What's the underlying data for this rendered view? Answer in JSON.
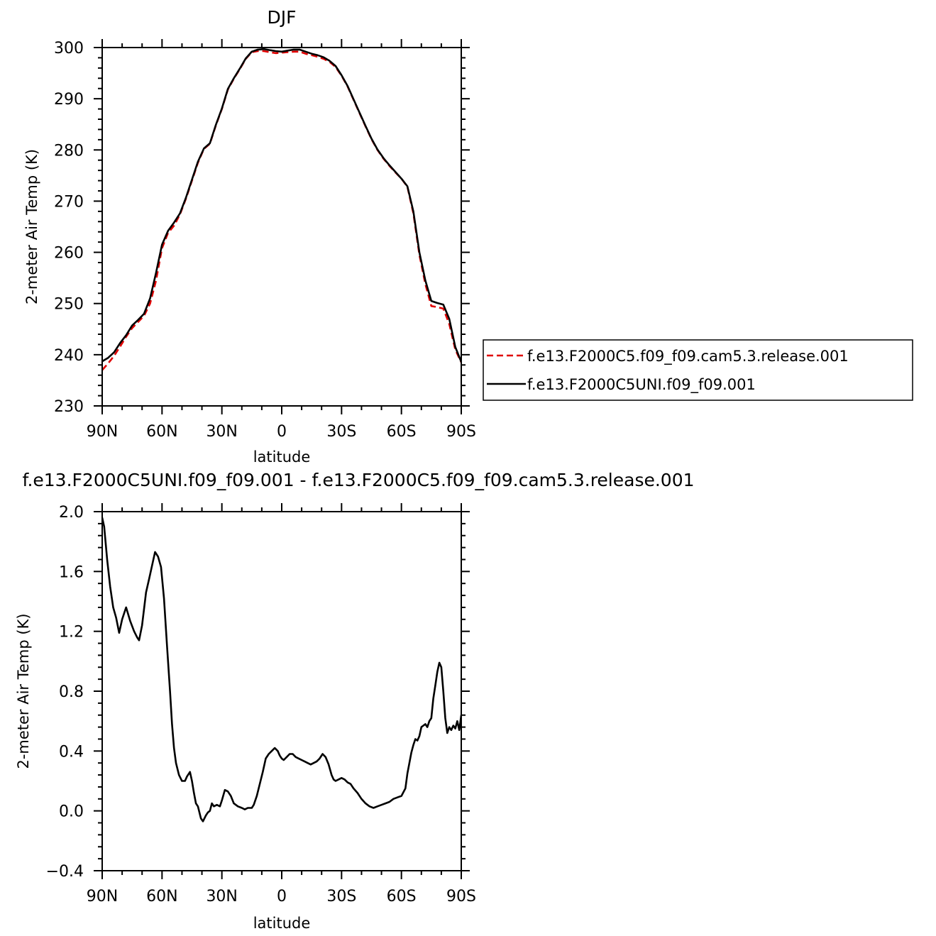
{
  "chart_data": [
    {
      "type": "line",
      "title": "DJF",
      "xlabel": "latitude",
      "ylabel": "2-meter Air Temp (K)",
      "xlim": [
        -90,
        90
      ],
      "ylim": [
        230,
        300
      ],
      "x_ticks": [
        {
          "value": -90,
          "label": "90N"
        },
        {
          "value": -60,
          "label": "60N"
        },
        {
          "value": -30,
          "label": "30N"
        },
        {
          "value": 0,
          "label": "0"
        },
        {
          "value": 30,
          "label": "30S"
        },
        {
          "value": 60,
          "label": "60S"
        },
        {
          "value": 90,
          "label": "90S"
        }
      ],
      "y_ticks": [
        {
          "value": 230,
          "label": "230"
        },
        {
          "value": 240,
          "label": "240"
        },
        {
          "value": 250,
          "label": "250"
        },
        {
          "value": 260,
          "label": "260"
        },
        {
          "value": 270,
          "label": "270"
        },
        {
          "value": 280,
          "label": "280"
        },
        {
          "value": 290,
          "label": "290"
        },
        {
          "value": 300,
          "label": "300"
        }
      ],
      "legend_position": "right",
      "series": [
        {
          "name": "f.e13.F2000C5.f09_f09.cam5.3.release.001",
          "color": "#e00000",
          "dash": "dashed",
          "x": [
            -90,
            -87,
            -84,
            -81,
            -78,
            -75,
            -72,
            -69,
            -66,
            -63,
            -60,
            -57,
            -54,
            -51,
            -48,
            -45,
            -42,
            -39,
            -36,
            -33,
            -30,
            -27,
            -24,
            -21,
            -18,
            -15,
            -12,
            -9,
            -6,
            -3,
            0,
            3,
            6,
            9,
            12,
            15,
            18,
            21,
            24,
            27,
            30,
            33,
            36,
            39,
            42,
            45,
            48,
            51,
            54,
            57,
            60,
            63,
            66,
            69,
            72,
            75,
            78,
            81,
            84,
            87,
            90
          ],
          "values": [
            237.0,
            238.3,
            239.8,
            241.6,
            243.5,
            245.2,
            246.4,
            247.6,
            250.0,
            254.5,
            260.8,
            263.8,
            265.2,
            267.4,
            270.5,
            274.0,
            277.5,
            280.2,
            281.2,
            284.8,
            288.0,
            291.8,
            293.9,
            295.8,
            297.8,
            299.1,
            299.3,
            299.3,
            299.1,
            298.9,
            299.0,
            299.1,
            299.2,
            299.2,
            298.8,
            298.5,
            298.2,
            297.8,
            297.2,
            296.2,
            294.5,
            292.4,
            289.8,
            287.2,
            284.6,
            282.1,
            280.0,
            278.3,
            276.9,
            275.6,
            274.4,
            272.8,
            267.6,
            259.5,
            253.8,
            249.5,
            249.3,
            249.0,
            246.0,
            241.0,
            238.5
          ]
        },
        {
          "name": "f.e13.F2000C5UNI.f09_f09.001",
          "color": "#000000",
          "dash": "solid",
          "x": [
            -90,
            -87,
            -84,
            -81,
            -78,
            -75,
            -72,
            -69,
            -66,
            -63,
            -60,
            -57,
            -54,
            -51,
            -48,
            -45,
            -42,
            -39,
            -36,
            -33,
            -30,
            -27,
            -24,
            -21,
            -18,
            -15,
            -12,
            -9,
            -6,
            -3,
            0,
            3,
            6,
            9,
            12,
            15,
            18,
            21,
            24,
            27,
            30,
            33,
            36,
            39,
            42,
            45,
            48,
            51,
            54,
            57,
            60,
            63,
            66,
            69,
            72,
            75,
            78,
            81,
            84,
            87,
            90
          ],
          "values": [
            238.7,
            239.4,
            240.5,
            242.3,
            243.8,
            245.7,
            246.8,
            248.0,
            251.0,
            256.0,
            261.5,
            264.2,
            265.8,
            267.6,
            270.7,
            274.2,
            277.7,
            280.3,
            281.3,
            284.9,
            288.1,
            291.9,
            294.0,
            295.9,
            297.9,
            299.2,
            299.6,
            299.7,
            299.5,
            299.3,
            299.2,
            299.4,
            299.6,
            299.6,
            299.2,
            298.8,
            298.5,
            298.1,
            297.4,
            296.4,
            294.6,
            292.5,
            289.9,
            287.3,
            284.7,
            282.2,
            280.1,
            278.4,
            277.0,
            275.7,
            274.4,
            272.9,
            268.0,
            260.0,
            254.5,
            250.5,
            250.1,
            249.8,
            247.0,
            241.5,
            238.6
          ]
        }
      ]
    },
    {
      "type": "line",
      "title": "f.e13.F2000C5UNI.f09_f09.001  -  f.e13.F2000C5.f09_f09.cam5.3.release.001",
      "xlabel": "latitude",
      "ylabel": "2-meter Air Temp (K)",
      "xlim": [
        -90,
        90
      ],
      "ylim": [
        -0.4,
        2.0
      ],
      "x_ticks": [
        {
          "value": -90,
          "label": "90N"
        },
        {
          "value": -60,
          "label": "60N"
        },
        {
          "value": -30,
          "label": "30N"
        },
        {
          "value": 0,
          "label": "0"
        },
        {
          "value": 30,
          "label": "30S"
        },
        {
          "value": 60,
          "label": "60S"
        },
        {
          "value": 90,
          "label": "90S"
        }
      ],
      "y_ticks": [
        {
          "value": -0.4,
          "label": "−0.4"
        },
        {
          "value": 0.0,
          "label": "0.0"
        },
        {
          "value": 0.4,
          "label": "0.4"
        },
        {
          "value": 0.8,
          "label": "0.8"
        },
        {
          "value": 1.2,
          "label": "1.2"
        },
        {
          "value": 1.6,
          "label": "1.6"
        },
        {
          "value": 2.0,
          "label": "2.0"
        }
      ],
      "series": [
        {
          "color": "#000000",
          "dash": "solid",
          "x": [
            -90,
            -89,
            -87.5,
            -86,
            -84.5,
            -83,
            -81.5,
            -80,
            -78,
            -76,
            -74,
            -72.5,
            -71.5,
            -70,
            -68,
            -66.5,
            -65,
            -63.5,
            -62,
            -60.5,
            -59,
            -57.5,
            -56,
            -55,
            -54,
            -53,
            -51.5,
            -50,
            -48.5,
            -47.5,
            -46,
            -45,
            -44,
            -43,
            -42,
            -40.5,
            -39.5,
            -38,
            -37,
            -36,
            -35,
            -34,
            -32.5,
            -31,
            -30,
            -28.5,
            -27,
            -25.5,
            -24,
            -22,
            -20,
            -18.5,
            -17,
            -15,
            -14,
            -12.5,
            -11,
            -9.5,
            -8,
            -6.5,
            -5,
            -3.5,
            -2,
            -1,
            0,
            1,
            2.5,
            4,
            5.5,
            7,
            8.5,
            10,
            11.5,
            13,
            14.5,
            16,
            17.5,
            19,
            20.5,
            22,
            23.5,
            25,
            26,
            27,
            28.5,
            30,
            31.5,
            33,
            34.5,
            36,
            38,
            40,
            42,
            44,
            46,
            48,
            50,
            52,
            54,
            56,
            58,
            60,
            62,
            63,
            64,
            65,
            66,
            67,
            68,
            69,
            70,
            71,
            72,
            73,
            74,
            75,
            76,
            77,
            78,
            79,
            80,
            81,
            82,
            83,
            84,
            85,
            86,
            87,
            88,
            89,
            90
          ],
          "values": [
            1.96,
            1.9,
            1.68,
            1.5,
            1.36,
            1.29,
            1.19,
            1.28,
            1.36,
            1.27,
            1.2,
            1.16,
            1.14,
            1.24,
            1.46,
            1.55,
            1.64,
            1.73,
            1.7,
            1.63,
            1.42,
            1.1,
            0.8,
            0.58,
            0.42,
            0.32,
            0.24,
            0.2,
            0.2,
            0.23,
            0.26,
            0.2,
            0.12,
            0.05,
            0.03,
            -0.05,
            -0.07,
            -0.03,
            -0.01,
            0.0,
            0.05,
            0.03,
            0.04,
            0.03,
            0.07,
            0.14,
            0.13,
            0.1,
            0.05,
            0.03,
            0.02,
            0.01,
            0.02,
            0.02,
            0.04,
            0.1,
            0.18,
            0.26,
            0.35,
            0.38,
            0.4,
            0.42,
            0.4,
            0.37,
            0.35,
            0.34,
            0.36,
            0.38,
            0.38,
            0.36,
            0.35,
            0.34,
            0.33,
            0.32,
            0.31,
            0.32,
            0.33,
            0.35,
            0.38,
            0.36,
            0.31,
            0.24,
            0.21,
            0.2,
            0.21,
            0.22,
            0.21,
            0.19,
            0.18,
            0.15,
            0.12,
            0.08,
            0.05,
            0.03,
            0.02,
            0.03,
            0.04,
            0.05,
            0.06,
            0.08,
            0.09,
            0.1,
            0.15,
            0.25,
            0.32,
            0.39,
            0.44,
            0.48,
            0.47,
            0.5,
            0.56,
            0.57,
            0.58,
            0.56,
            0.6,
            0.62,
            0.75,
            0.84,
            0.93,
            0.99,
            0.96,
            0.8,
            0.62,
            0.52,
            0.56,
            0.54,
            0.57,
            0.55,
            0.6,
            0.54,
            0.64
          ]
        }
      ]
    }
  ]
}
